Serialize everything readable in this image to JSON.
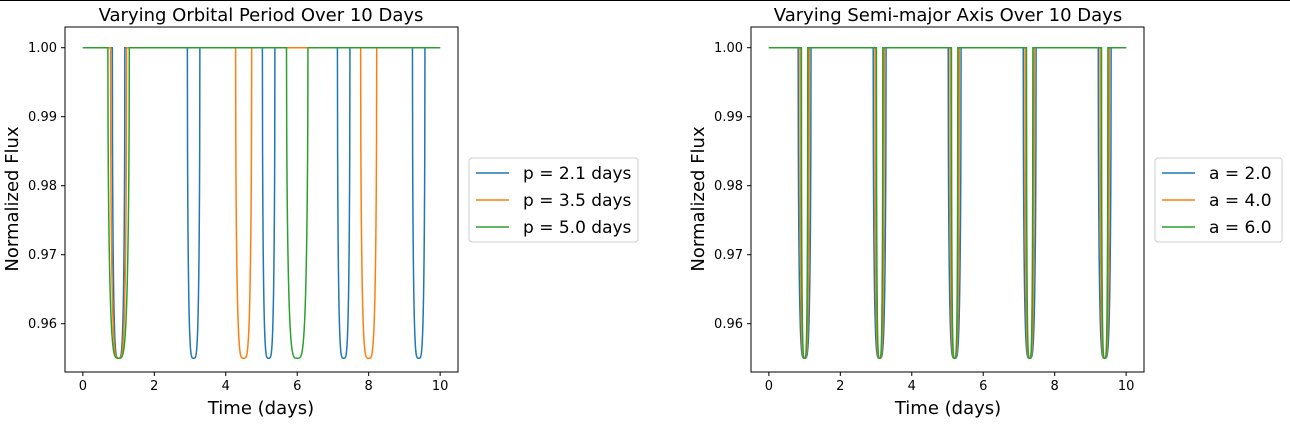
{
  "chart_data": [
    {
      "type": "line",
      "title": "Varying Orbital Period Over 10 Days",
      "xlabel": "Time (days)",
      "ylabel": "Normalized Flux",
      "xlim": [
        -0.5,
        10.5
      ],
      "ylim": [
        0.953,
        1.003
      ],
      "xticks": [
        "0",
        "2",
        "4",
        "6",
        "8",
        "10"
      ],
      "yticks": [
        "0.96",
        "0.97",
        "0.98",
        "0.99",
        "1.00"
      ],
      "grid": false,
      "legend_position": "outside-right",
      "transit": {
        "depth": 0.045,
        "baseline": 1.0
      },
      "series": [
        {
          "name": "p = 2.1 days",
          "color": "#1f77b4",
          "transit_centers": [
            1.0,
            3.1,
            5.2,
            7.3,
            9.4
          ],
          "transit_width": 0.35
        },
        {
          "name": "p = 3.5 days",
          "color": "#ff7f0e",
          "transit_centers": [
            1.0,
            4.5,
            8.0
          ],
          "transit_width": 0.45
        },
        {
          "name": "p = 5.0 days",
          "color": "#2ca02c",
          "transit_centers": [
            1.0,
            6.0
          ],
          "transit_width": 0.6
        }
      ]
    },
    {
      "type": "line",
      "title": "Varying Semi-major Axis Over 10 Days",
      "xlabel": "Time (days)",
      "ylabel": "Normalized Flux",
      "xlim": [
        -0.5,
        10.5
      ],
      "ylim": [
        0.953,
        1.003
      ],
      "xticks": [
        "0",
        "2",
        "4",
        "6",
        "8",
        "10"
      ],
      "yticks": [
        "0.96",
        "0.97",
        "0.98",
        "0.99",
        "1.00"
      ],
      "grid": false,
      "legend_position": "outside-right",
      "transit": {
        "depth": 0.045,
        "baseline": 1.0
      },
      "series": [
        {
          "name": "a = 2.0",
          "color": "#1f77b4",
          "transit_centers": [
            1.0,
            3.1,
            5.2,
            7.3,
            9.4
          ],
          "transit_width": 0.36
        },
        {
          "name": "a = 4.0",
          "color": "#ff7f0e",
          "transit_centers": [
            1.0,
            3.1,
            5.2,
            7.3,
            9.4
          ],
          "transit_width": 0.26
        },
        {
          "name": "a = 6.0",
          "color": "#2ca02c",
          "transit_centers": [
            1.0,
            3.1,
            5.2,
            7.3,
            9.4
          ],
          "transit_width": 0.18
        }
      ]
    }
  ]
}
